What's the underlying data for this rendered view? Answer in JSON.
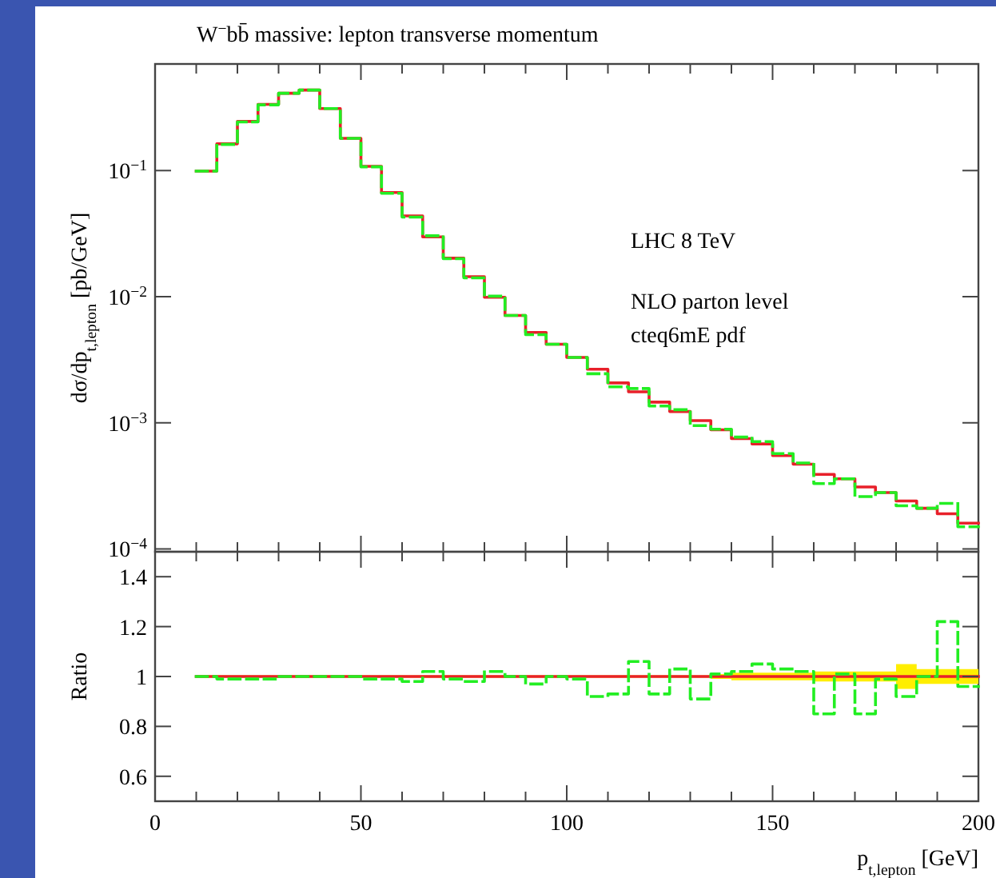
{
  "chart_data": [
    {
      "type": "step",
      "title": "W$^{−}$bb̄ massive: lepton transverse momentum",
      "ylabel": "dσ/dp$_{t,lepton}$ [pb/GeV]",
      "x": [
        10,
        15,
        20,
        25,
        30,
        35,
        40,
        45,
        50,
        55,
        60,
        65,
        70,
        75,
        80,
        85,
        90,
        95,
        100,
        105,
        110,
        115,
        120,
        125,
        130,
        135,
        140,
        145,
        150,
        155,
        160,
        165,
        170,
        175,
        180,
        185,
        190,
        195,
        200
      ],
      "series": [
        {
          "color": "#e8202a",
          "line_style": "solid",
          "values": [
            0.099,
            0.163,
            0.245,
            0.335,
            0.41,
            0.435,
            0.31,
            0.18,
            0.108,
            0.067,
            0.0437,
            0.0298,
            0.0202,
            0.0144,
            0.0099,
            0.0071,
            0.0052,
            0.0042,
            0.0033,
            0.00266,
            0.00207,
            0.00176,
            0.00146,
            0.00123,
            0.00104,
            0.00088,
            0.00075,
            0.00068,
            0.00055,
            0.00047,
            0.00039,
            0.00036,
            0.00031,
            0.00028,
            0.00024,
            0.00021,
            0.00019,
            0.00016,
            0.00016
          ]
        },
        {
          "color": "#22ee22",
          "line_style": "dashed",
          "values": [
            0.099,
            0.161,
            0.243,
            0.332,
            0.41,
            0.435,
            0.31,
            0.18,
            0.107,
            0.066,
            0.0428,
            0.0304,
            0.02,
            0.0141,
            0.0101,
            0.0071,
            0.005,
            0.0042,
            0.0033,
            0.00245,
            0.00193,
            0.00187,
            0.00136,
            0.00127,
            0.00095,
            0.00089,
            0.00077,
            0.00071,
            0.00057,
            0.00048,
            0.00033,
            0.00036,
            0.00026,
            0.00028,
            0.00022,
            0.00021,
            0.00023,
            0.00015,
            0.00015
          ]
        }
      ],
      "log": "y",
      "xlim": [
        0,
        200
      ],
      "ylim": [
        9.5e-05,
        0.7
      ],
      "xticks": [
        0,
        {
          "value": 10,
          "label": null
        },
        {
          "value": 20,
          "label": null
        },
        {
          "value": 30,
          "label": null
        },
        {
          "value": 40,
          "label": null
        },
        50,
        {
          "value": 60,
          "label": null
        },
        {
          "value": 70,
          "label": null
        },
        {
          "value": 80,
          "label": null
        },
        {
          "value": 90,
          "label": null
        },
        100,
        {
          "value": 110,
          "label": null
        },
        {
          "value": 120,
          "label": null
        },
        {
          "value": 130,
          "label": null
        },
        {
          "value": 140,
          "label": null
        },
        150,
        {
          "value": 160,
          "label": null
        },
        {
          "value": 170,
          "label": null
        },
        {
          "value": 180,
          "label": null
        },
        {
          "value": 190,
          "label": null
        },
        200
      ],
      "yticks": [
        {
          "value": 0.0001,
          "label": "10$^{−4}$"
        },
        {
          "value": 0.001,
          "label": "10$^{−3}$"
        },
        {
          "value": 0.01,
          "label": "10$^{−2}$"
        },
        {
          "value": 0.1,
          "label": "10$^{−1}$"
        }
      ],
      "tick_labels": "y",
      "grid": false,
      "annotations": [
        "LHC 8 TeV",
        "NLO parton level",
        "cteq6mE pdf"
      ]
    },
    {
      "type": "step",
      "xlabel": "p$_{t,lepton}$ [GeV]",
      "ylabel": "Ratio",
      "x": [
        10,
        15,
        20,
        25,
        30,
        35,
        40,
        45,
        50,
        55,
        60,
        65,
        70,
        75,
        80,
        85,
        90,
        95,
        100,
        105,
        110,
        115,
        120,
        125,
        130,
        135,
        140,
        145,
        150,
        155,
        160,
        165,
        170,
        175,
        180,
        185,
        190,
        195,
        200
      ],
      "series": [
        {
          "color": "#e8202a",
          "line_style": "solid",
          "values": [
            1,
            1,
            1,
            1,
            1,
            1,
            1,
            1,
            1,
            1,
            1,
            1,
            1,
            1,
            1,
            1,
            1,
            1,
            1,
            1,
            1,
            1,
            1,
            1,
            1,
            1,
            1,
            1,
            1,
            1,
            1,
            1,
            1,
            1,
            1,
            1,
            1,
            1,
            1
          ],
          "lower": [
            0.995,
            0.995,
            0.995,
            0.995,
            0.995,
            0.995,
            0.995,
            0.995,
            0.995,
            0.995,
            0.995,
            0.995,
            0.995,
            0.995,
            0.995,
            0.995,
            0.995,
            0.995,
            0.995,
            0.995,
            0.995,
            0.995,
            0.995,
            0.995,
            0.995,
            0.99,
            0.985,
            0.985,
            0.985,
            0.985,
            0.98,
            0.98,
            0.98,
            0.98,
            0.95,
            0.97,
            0.97,
            0.97,
            0.97
          ],
          "upper": [
            1.005,
            1.005,
            1.005,
            1.005,
            1.005,
            1.005,
            1.005,
            1.005,
            1.005,
            1.005,
            1.005,
            1.005,
            1.005,
            1.005,
            1.005,
            1.005,
            1.005,
            1.005,
            1.005,
            1.005,
            1.005,
            1.005,
            1.005,
            1.005,
            1.005,
            1.01,
            1.015,
            1.015,
            1.015,
            1.015,
            1.02,
            1.02,
            1.02,
            1.02,
            1.05,
            1.03,
            1.03,
            1.03,
            1.03
          ]
        },
        {
          "color": "#22ee22",
          "line_style": "dashed",
          "values": [
            1,
            0.99,
            0.99,
            0.99,
            1,
            1,
            1,
            1,
            0.99,
            0.99,
            0.98,
            1.02,
            0.99,
            0.98,
            1.02,
            1,
            0.97,
            1,
            0.99,
            0.92,
            0.93,
            1.06,
            0.93,
            1.03,
            0.91,
            1.01,
            1.02,
            1.05,
            1.03,
            1.02,
            0.85,
            1.01,
            0.85,
            0.99,
            0.92,
            1,
            1.22,
            0.96,
            0.96
          ]
        }
      ],
      "xlim": [
        0,
        200
      ],
      "ylim": [
        0.5,
        1.5
      ],
      "xticks": [
        0,
        {
          "value": 10,
          "label": null
        },
        {
          "value": 20,
          "label": null
        },
        {
          "value": 30,
          "label": null
        },
        {
          "value": 40,
          "label": null
        },
        50,
        {
          "value": 60,
          "label": null
        },
        {
          "value": 70,
          "label": null
        },
        {
          "value": 80,
          "label": null
        },
        {
          "value": 90,
          "label": null
        },
        100,
        {
          "value": 110,
          "label": null
        },
        {
          "value": 120,
          "label": null
        },
        {
          "value": 130,
          "label": null
        },
        {
          "value": 140,
          "label": null
        },
        150,
        {
          "value": 160,
          "label": null
        },
        {
          "value": 170,
          "label": null
        },
        {
          "value": 180,
          "label": null
        },
        {
          "value": 190,
          "label": null
        },
        200
      ],
      "yticks": [
        0.6,
        0.8,
        1,
        1.2,
        1.4
      ],
      "grid": false
    }
  ]
}
